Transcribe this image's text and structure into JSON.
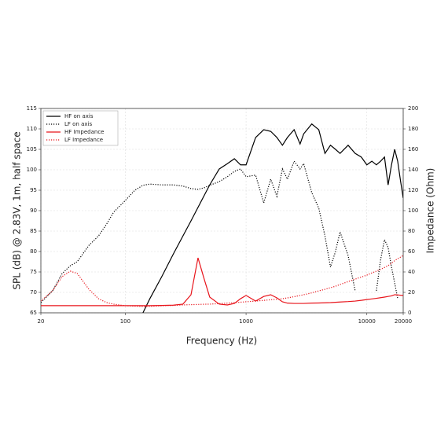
{
  "chart_data": {
    "type": "line",
    "xlabel": "Frequency (Hz)",
    "ylabel": "SPL (dB) @ 2.83V, 1m, half space",
    "y2label": "Impedance (Ohm)",
    "xscale": "log",
    "grid": true,
    "legend": "upper left",
    "xlim": [
      20,
      20000
    ],
    "xticks": [
      20,
      100,
      1000,
      10000,
      20000
    ],
    "ylim": [
      65,
      115
    ],
    "yticks": [
      65,
      70,
      75,
      80,
      85,
      90,
      95,
      100,
      105,
      110,
      115
    ],
    "y2lim": [
      0,
      200
    ],
    "y2ticks": [
      0,
      20,
      40,
      60,
      80,
      100,
      120,
      140,
      160,
      180,
      200
    ],
    "x": [
      20,
      25,
      30,
      35,
      40,
      50,
      60,
      70,
      80,
      100,
      120,
      140,
      160,
      200,
      250,
      300,
      350,
      400,
      450,
      500,
      600,
      700,
      800,
      900,
      1000,
      1200,
      1400,
      1600,
      1800,
      2000,
      2200,
      2500,
      2800,
      3000,
      3500,
      4000,
      4500,
      5000,
      5500,
      6000,
      7000,
      8000,
      9000,
      10000,
      11000,
      12000,
      13000,
      14000,
      15000,
      16000,
      17000,
      18000,
      19000,
      20000
    ],
    "series": [
      {
        "name": "HF on axis",
        "color": "#000000",
        "style": "solid",
        "values": [
          null,
          null,
          null,
          null,
          null,
          null,
          null,
          null,
          null,
          null,
          null,
          65,
          68.5,
          73.8,
          79.4,
          83.8,
          87.5,
          90.8,
          93.7,
          96.3,
          100.2,
          101.5,
          102.7,
          101.2,
          101.2,
          107.9,
          109.8,
          109.4,
          107.9,
          106,
          107.9,
          109.8,
          106.3,
          108.8,
          111.2,
          109.8,
          104,
          106,
          105,
          104,
          106,
          104,
          103.1,
          101.2,
          102.1,
          101.2,
          102.1,
          103.1,
          96.3,
          101.2,
          105,
          102.1,
          97.3,
          93.1
        ]
      },
      {
        "name": "LF on axis",
        "color": "#000000",
        "style": "dotted",
        "values": [
          67.5,
          70.4,
          74.6,
          76.5,
          77.5,
          81.5,
          83.8,
          86.7,
          89.6,
          92.5,
          95,
          96.2,
          96.5,
          96.3,
          96.3,
          96,
          95.4,
          95.2,
          95.6,
          96.2,
          97.1,
          98.3,
          99.6,
          100.2,
          98.3,
          98.7,
          91.9,
          97.7,
          93.5,
          100.2,
          97.7,
          102.1,
          100.2,
          101.5,
          94.4,
          90.6,
          83.8,
          76.2,
          80,
          84.8,
          79,
          70.4,
          null,
          null,
          null,
          70.4,
          78,
          82.9,
          81,
          76.2,
          72.3,
          68.5,
          null,
          null
        ]
      },
      {
        "name": "HF Impedance",
        "color": "#e8141b",
        "style": "solid",
        "axis": "y2",
        "values": [
          7,
          7,
          7,
          7,
          7,
          7,
          7,
          7,
          7,
          7,
          7,
          7,
          7,
          7.2,
          7.5,
          8.5,
          17.7,
          53.8,
          33,
          15.4,
          8.5,
          7.7,
          9.2,
          13.8,
          17,
          11.5,
          16,
          17.7,
          14.6,
          10.8,
          9.5,
          9.2,
          9.2,
          9.2,
          9.5,
          9.6,
          9.8,
          10,
          10.3,
          10.6,
          11,
          11.5,
          12.2,
          13,
          13.6,
          14.2,
          14.8,
          15.4,
          16,
          16.6,
          17.7,
          17.5,
          17.2,
          17
        ]
      },
      {
        "name": "LF Impedance",
        "color": "#e8141b",
        "style": "dotted",
        "axis": "y2",
        "values": [
          11.5,
          21.5,
          35.4,
          40.8,
          38.5,
          23,
          13.8,
          10,
          8.5,
          6.9,
          6.5,
          6.2,
          6.3,
          6.9,
          7.2,
          7.7,
          8,
          8.2,
          8.4,
          8.5,
          9,
          9.5,
          10,
          10.4,
          10.8,
          11.5,
          12.2,
          12.8,
          13.3,
          13.8,
          14.6,
          15.8,
          17,
          17.7,
          19.5,
          21.5,
          23,
          24.6,
          26,
          27.7,
          30.5,
          33,
          35,
          36.9,
          39,
          40.8,
          42.5,
          44.4,
          46.2,
          48.5,
          51,
          53,
          54.5,
          56
        ]
      }
    ]
  }
}
